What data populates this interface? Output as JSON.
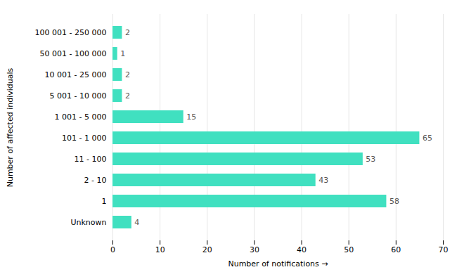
{
  "chart_data": {
    "type": "bar",
    "orientation": "horizontal",
    "categories": [
      "Unknown",
      "1",
      "2 - 10",
      "11 - 100",
      "101 - 1 000",
      "1 001 - 5 000",
      "5 001 - 10 000",
      "10 001 - 25 000",
      "50 001 - 100 000",
      "100 001 - 250 000"
    ],
    "values": [
      4,
      58,
      43,
      53,
      65,
      15,
      2,
      2,
      1,
      2
    ],
    "color": "#40e0c0",
    "xlabel": "Number of notifications",
    "ylabel": "Number of affected individuals",
    "xlim": [
      0,
      70
    ],
    "xticks": [
      0,
      10,
      20,
      30,
      40,
      50,
      60,
      70
    ],
    "grid": true,
    "data_labels": true
  }
}
